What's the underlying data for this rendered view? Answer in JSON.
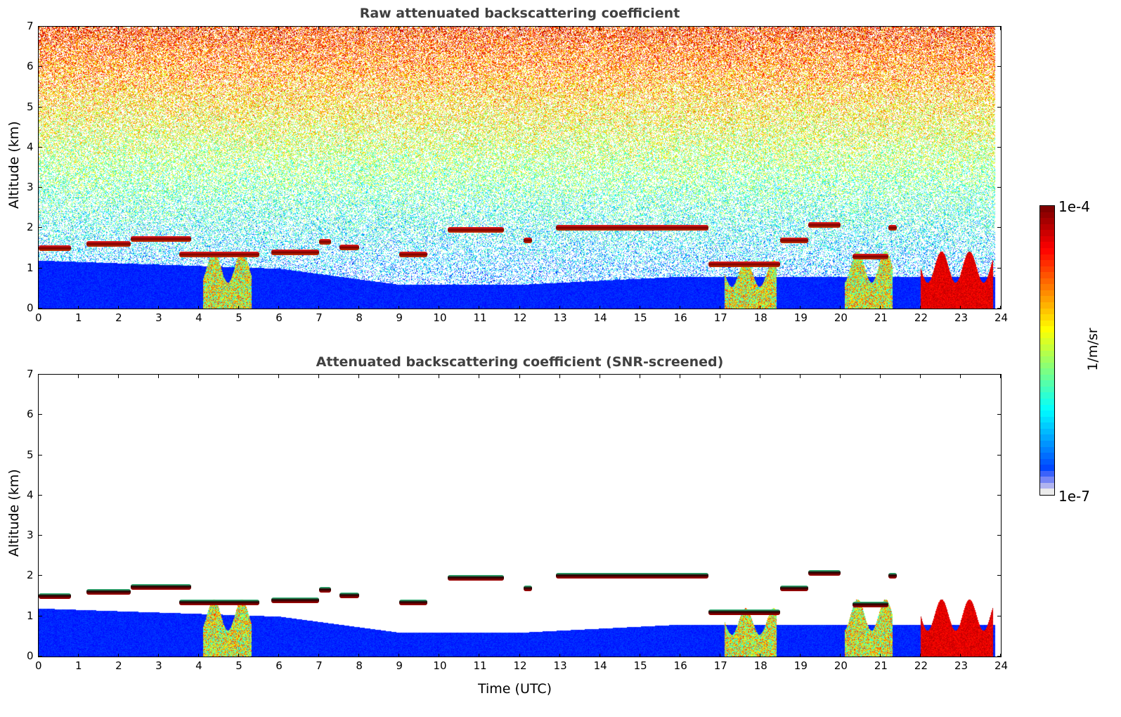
{
  "chart_data": [
    {
      "type": "heatmap",
      "title": "Raw attenuated backscattering coefficient",
      "xlabel": "",
      "ylabel": "Altitude (km)",
      "xlim": [
        0,
        24
      ],
      "ylim": [
        0,
        7
      ],
      "xticks": [
        "0",
        "1",
        "2",
        "3",
        "4",
        "5",
        "6",
        "7",
        "8",
        "9",
        "10",
        "11",
        "12",
        "13",
        "14",
        "15",
        "16",
        "17",
        "18",
        "19",
        "20",
        "21",
        "22",
        "23",
        "24"
      ],
      "yticks": [
        "0",
        "1",
        "2",
        "3",
        "4",
        "5",
        "6",
        "7"
      ],
      "screened": false
    },
    {
      "type": "heatmap",
      "title": "Attenuated backscattering coefficient (SNR-screened)",
      "xlabel": "Time (UTC)",
      "ylabel": "Altitude (km)",
      "xlim": [
        0,
        24
      ],
      "ylim": [
        0,
        7
      ],
      "xticks": [
        "0",
        "1",
        "2",
        "3",
        "4",
        "5",
        "6",
        "7",
        "8",
        "9",
        "10",
        "11",
        "12",
        "13",
        "14",
        "15",
        "16",
        "17",
        "18",
        "19",
        "20",
        "21",
        "22",
        "23",
        "24"
      ],
      "yticks": [
        "0",
        "1",
        "2",
        "3",
        "4",
        "5",
        "6",
        "7"
      ],
      "screened": true
    }
  ],
  "features": {
    "cloud_layers_hours_km": [
      [
        0,
        0.8,
        1.5
      ],
      [
        1.2,
        2.3,
        1.6
      ],
      [
        2.3,
        3.8,
        1.72
      ],
      [
        3.5,
        5.5,
        1.35
      ],
      [
        5.8,
        7,
        1.4
      ],
      [
        7,
        7.3,
        1.65
      ],
      [
        7.5,
        8,
        1.52
      ],
      [
        9,
        9.7,
        1.35
      ],
      [
        10.2,
        11.6,
        1.95
      ],
      [
        12.1,
        12.3,
        1.7
      ],
      [
        12.9,
        16.7,
        2.0
      ],
      [
        16.7,
        18.5,
        1.1
      ],
      [
        18.5,
        19.2,
        1.7
      ],
      [
        19.2,
        20,
        2.08
      ],
      [
        20.3,
        21.2,
        1.3
      ],
      [
        21.2,
        21.4,
        2.0
      ]
    ],
    "precip_columns_hours_km": [
      [
        4.1,
        5.3,
        1.3
      ],
      [
        17.1,
        18.4,
        1.1
      ],
      [
        20.1,
        21.3,
        1.3
      ],
      [
        22,
        23.8,
        1.3
      ]
    ],
    "boundary_layer_top_km": [
      [
        0,
        1.2
      ],
      [
        6,
        1.0
      ],
      [
        9,
        0.6
      ],
      [
        12,
        0.6
      ],
      [
        16,
        0.8
      ],
      [
        24,
        0.8
      ]
    ]
  },
  "colorbar": {
    "label": "1/m/sr",
    "min_label": "1e-7",
    "max_label": "1e-4",
    "colormap": "jet"
  }
}
